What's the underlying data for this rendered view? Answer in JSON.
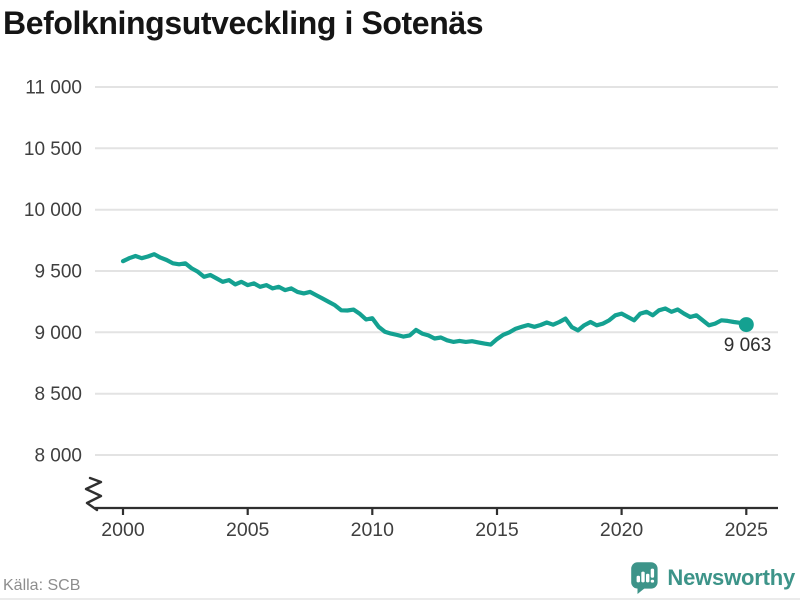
{
  "title": "Befolkningsutveckling i Sotenäs",
  "footer": {
    "source": "Källa: SCB",
    "brand": "Newsworthy",
    "brand_color": "#3d9489"
  },
  "chart_data": {
    "type": "line",
    "title": "Befolkningsutveckling i Sotenäs",
    "xlabel": "",
    "ylabel": "",
    "xlim": [
      2000,
      2025
    ],
    "ylim": [
      8000,
      11000
    ],
    "y_axis_break": true,
    "grid": "horizontal",
    "legend": "none",
    "end_label": "9 063",
    "end_value": 9063,
    "yticks": [
      {
        "value": 8000,
        "label": "8 000"
      },
      {
        "value": 8500,
        "label": "8 500"
      },
      {
        "value": 9000,
        "label": "9 000"
      },
      {
        "value": 9500,
        "label": "9 500"
      },
      {
        "value": 10000,
        "label": "10 000"
      },
      {
        "value": 10500,
        "label": "10 500"
      },
      {
        "value": 11000,
        "label": "11 000"
      }
    ],
    "xticks": [
      {
        "value": 2000,
        "label": "2000"
      },
      {
        "value": 2005,
        "label": "2005"
      },
      {
        "value": 2010,
        "label": "2010"
      },
      {
        "value": 2015,
        "label": "2015"
      },
      {
        "value": 2020,
        "label": "2020"
      },
      {
        "value": 2025,
        "label": "2025"
      }
    ],
    "colors": {
      "line": "#14a191",
      "grid": "#e3e3e3",
      "axis": "#2f2f2f",
      "tick_label": "#3f3f3f",
      "end_label": "#2f2f2f"
    },
    "x": [
      2000,
      2000.25,
      2000.5,
      2000.75,
      2001,
      2001.25,
      2001.5,
      2001.75,
      2002,
      2002.25,
      2002.5,
      2002.75,
      2003,
      2003.25,
      2003.5,
      2003.75,
      2004,
      2004.25,
      2004.5,
      2004.75,
      2005,
      2005.25,
      2005.5,
      2005.75,
      2006,
      2006.25,
      2006.5,
      2006.75,
      2007,
      2007.25,
      2007.5,
      2007.75,
      2008,
      2008.25,
      2008.5,
      2008.75,
      2009,
      2009.25,
      2009.5,
      2009.75,
      2010,
      2010.25,
      2010.5,
      2010.75,
      2011,
      2011.25,
      2011.5,
      2011.75,
      2012,
      2012.25,
      2012.5,
      2012.75,
      2013,
      2013.25,
      2013.5,
      2013.75,
      2014,
      2014.25,
      2014.5,
      2014.75,
      2015,
      2015.25,
      2015.5,
      2015.75,
      2016,
      2016.25,
      2016.5,
      2016.75,
      2017,
      2017.25,
      2017.5,
      2017.75,
      2018,
      2018.25,
      2018.5,
      2018.75,
      2019,
      2019.25,
      2019.5,
      2019.75,
      2020,
      2020.25,
      2020.5,
      2020.75,
      2021,
      2021.25,
      2021.5,
      2021.75,
      2022,
      2022.25,
      2022.5,
      2022.75,
      2023,
      2023.25,
      2023.5,
      2023.75,
      2024,
      2024.25,
      2024.5,
      2024.75,
      2025
    ],
    "values": [
      9580,
      9604,
      9622,
      9604,
      9618,
      9637,
      9609,
      9590,
      9563,
      9555,
      9563,
      9522,
      9494,
      9453,
      9467,
      9440,
      9412,
      9426,
      9391,
      9412,
      9385,
      9399,
      9371,
      9385,
      9358,
      9371,
      9344,
      9358,
      9330,
      9317,
      9330,
      9303,
      9276,
      9248,
      9221,
      9180,
      9178,
      9185,
      9150,
      9105,
      9115,
      9045,
      9005,
      8990,
      8978,
      8965,
      8975,
      9020,
      8990,
      8975,
      8950,
      8958,
      8935,
      8922,
      8930,
      8922,
      8928,
      8918,
      8908,
      8900,
      8945,
      8980,
      9000,
      9030,
      9045,
      9060,
      9045,
      9060,
      9080,
      9062,
      9084,
      9112,
      9043,
      9016,
      9057,
      9084,
      9057,
      9071,
      9098,
      9139,
      9153,
      9125,
      9098,
      9153,
      9167,
      9139,
      9180,
      9194,
      9167,
      9186,
      9153,
      9125,
      9139,
      9098,
      9057,
      9071,
      9098,
      9093,
      9084,
      9078,
      9063
    ]
  }
}
